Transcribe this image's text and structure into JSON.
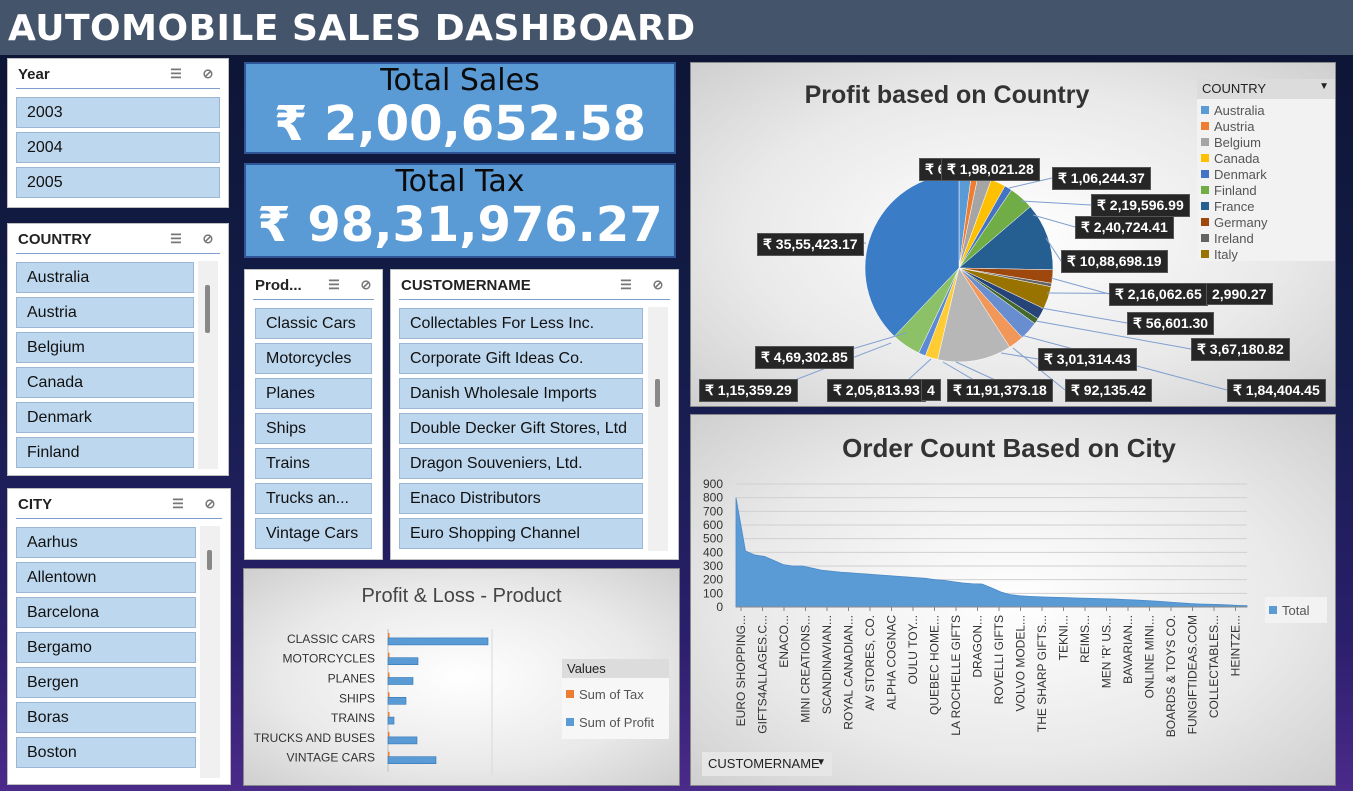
{
  "title": "AUTOMOBILE SALES DASHBOARD",
  "kpis": {
    "total_sales_label": "Total Sales",
    "total_sales_value": "₹ 2,00,652.58",
    "total_tax_label": "Total Tax",
    "total_tax_value": "₹ 98,31,976.27"
  },
  "slicers": {
    "year": {
      "title": "Year",
      "items": [
        "2003",
        "2004",
        "2005"
      ]
    },
    "country": {
      "title": "COUNTRY",
      "items": [
        "Australia",
        "Austria",
        "Belgium",
        "Canada",
        "Denmark",
        "Finland"
      ]
    },
    "city": {
      "title": "CITY",
      "items": [
        "Aarhus",
        "Allentown",
        "Barcelona",
        "Bergamo",
        "Bergen",
        "Boras",
        "Boston"
      ]
    },
    "product": {
      "title": "Prod...",
      "items": [
        "Classic Cars",
        "Motorcycles",
        "Planes",
        "Ships",
        "Trains",
        "Trucks an...",
        "Vintage Cars"
      ]
    },
    "customer": {
      "title": "CUSTOMERNAME",
      "items": [
        "Collectables For Less Inc.",
        "Corporate Gift Ideas Co.",
        "Danish Wholesale Imports",
        "Double Decker Gift Stores, Ltd",
        "Dragon Souveniers, Ltd.",
        "Enaco Distributors",
        "Euro Shopping Channel"
      ]
    }
  },
  "icons": {
    "multiselect": "multi-select-icon",
    "clear_filter": "clear-filter-icon"
  },
  "pie_chart": {
    "title": "Profit based on Country",
    "legend_field": "COUNTRY",
    "legend": [
      {
        "name": "Australia",
        "color": "#5b9bd5"
      },
      {
        "name": "Austria",
        "color": "#ed7d31"
      },
      {
        "name": "Belgium",
        "color": "#a5a5a5"
      },
      {
        "name": "Canada",
        "color": "#ffc000"
      },
      {
        "name": "Denmark",
        "color": "#4472c4"
      },
      {
        "name": "Finland",
        "color": "#70ad47"
      },
      {
        "name": "France",
        "color": "#255e91"
      },
      {
        "name": "Germany",
        "color": "#9e480e"
      },
      {
        "name": "Ireland",
        "color": "#636363"
      },
      {
        "name": "Italy",
        "color": "#997300"
      }
    ],
    "callouts": [
      "₹ 6",
      "₹ 1,98,021.28",
      "₹ 1,06,244.37",
      "₹ 2,19,596.99",
      "₹ 2,40,724.41",
      "₹ 10,88,698.19",
      "₹ 2,16,062.65",
      "2,990.27",
      "₹ 56,601.30",
      "₹ 3,67,180.82",
      "₹ 35,55,423.17",
      "₹ 4,69,302.85",
      "₹ 3,01,314.43",
      "₹ 1,15,359.29",
      "₹ 2,05,813.93",
      "₹ 11,91,373.18",
      "₹ 92,135.42",
      "₹ 1,84,404.45",
      "4"
    ]
  },
  "chart_data": [
    {
      "type": "bar",
      "title": "Profit & Loss - Product",
      "categories": [
        "CLASSIC CARS",
        "MOTORCYCLES",
        "PLANES",
        "SHIPS",
        "TRAINS",
        "TRUCKS AND BUSES",
        "VINTAGE CARS"
      ],
      "series": [
        {
          "name": "Sum of Tax",
          "color": "#ed7d31",
          "values": [
            1,
            0.2,
            0.2,
            0.1,
            0.05,
            0.2,
            0.3
          ]
        },
        {
          "name": "Sum of Profit",
          "color": "#5b9bd5",
          "values": [
            100,
            30,
            25,
            18,
            6,
            29,
            48
          ]
        }
      ],
      "legend_title": "Values"
    },
    {
      "type": "area",
      "title": "Order Count Based on City",
      "ylim": [
        0,
        900
      ],
      "yticks": [
        0,
        100,
        200,
        300,
        400,
        500,
        600,
        700,
        800,
        900
      ],
      "series": [
        {
          "name": "Total",
          "color": "#5b9bd5",
          "values": [
            800,
            410,
            380,
            370,
            340,
            310,
            300,
            300,
            285,
            270,
            262,
            255,
            250,
            245,
            240,
            235,
            230,
            225,
            220,
            215,
            210,
            200,
            195,
            185,
            175,
            170,
            168,
            140,
            110,
            90,
            82,
            78,
            75,
            72,
            70,
            68,
            66,
            64,
            62,
            60,
            58,
            55,
            52,
            48,
            45,
            40,
            35,
            30,
            25,
            22,
            20,
            18,
            15,
            12,
            10
          ]
        }
      ],
      "xtick_labels": [
        "EURO SHOPPING...",
        "GIFTS4ALLAGES.C...",
        "ENACO...",
        "MINI CREATIONS...",
        "SCANDINAVIAN...",
        "ROYAL CANADIAN...",
        "AV STORES, CO.",
        "ALPHA COGNAC",
        "OULU TOY...",
        "QUEBEC HOME...",
        "LA ROCHELLE GIFTS",
        "DRAGON...",
        "ROVELLI GIFTS",
        "VOLVO MODEL...",
        "THE SHARP GIFTS...",
        "TEKNI...",
        "REIMS...",
        "MEN 'R' US...",
        "BAVARIAN...",
        "ONLINE MINI...",
        "BOARDS & TOYS CO.",
        "FUNGIFTIDEAS.COM",
        "COLLECTABLES...",
        "HEINTZE..."
      ],
      "field_button": "CUSTOMERNAME"
    }
  ]
}
